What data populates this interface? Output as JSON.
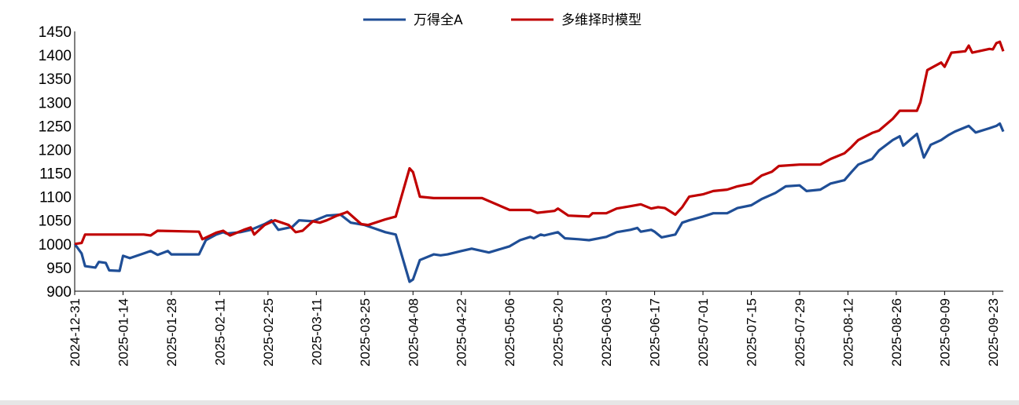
{
  "chart_data": {
    "type": "line",
    "title": "",
    "xlabel": "",
    "ylabel": "",
    "ylim": [
      900,
      1450
    ],
    "yticks": [
      900,
      950,
      1000,
      1050,
      1100,
      1150,
      1200,
      1250,
      1300,
      1350,
      1400,
      1450
    ],
    "xlim": [
      "2024-12-31",
      "2025-09-26"
    ],
    "xticks": [
      "2024-12-31",
      "2025-01-14",
      "2025-01-28",
      "2025-02-11",
      "2025-02-25",
      "2025-03-11",
      "2025-03-25",
      "2025-04-08",
      "2025-04-22",
      "2025-05-06",
      "2025-05-20",
      "2025-06-03",
      "2025-06-17",
      "2025-07-01",
      "2025-07-15",
      "2025-07-29",
      "2025-08-12",
      "2025-08-26",
      "2025-09-09",
      "2025-09-23"
    ],
    "grid": false,
    "legend": "top-center",
    "series": [
      {
        "name": "万得全A",
        "color": "#1F4E96",
        "points": [
          [
            "2024-12-31",
            1000
          ],
          [
            "2025-01-02",
            980
          ],
          [
            "2025-01-03",
            953
          ],
          [
            "2025-01-06",
            950
          ],
          [
            "2025-01-07",
            962
          ],
          [
            "2025-01-09",
            960
          ],
          [
            "2025-01-10",
            944
          ],
          [
            "2025-01-13",
            943
          ],
          [
            "2025-01-14",
            975
          ],
          [
            "2025-01-16",
            970
          ],
          [
            "2025-01-20",
            980
          ],
          [
            "2025-01-22",
            985
          ],
          [
            "2025-01-24",
            977
          ],
          [
            "2025-01-27",
            985
          ],
          [
            "2025-01-28",
            978
          ],
          [
            "2025-02-05",
            978
          ],
          [
            "2025-02-07",
            1008
          ],
          [
            "2025-02-10",
            1020
          ],
          [
            "2025-02-12",
            1025
          ],
          [
            "2025-02-13",
            1022
          ],
          [
            "2025-02-17",
            1025
          ],
          [
            "2025-02-20",
            1030
          ],
          [
            "2025-02-24",
            1042
          ],
          [
            "2025-02-26",
            1050
          ],
          [
            "2025-02-28",
            1030
          ],
          [
            "2025-03-04",
            1036
          ],
          [
            "2025-03-06",
            1050
          ],
          [
            "2025-03-10",
            1048
          ],
          [
            "2025-03-14",
            1060
          ],
          [
            "2025-03-18",
            1062
          ],
          [
            "2025-03-21",
            1045
          ],
          [
            "2025-03-25",
            1040
          ],
          [
            "2025-03-27",
            1035
          ],
          [
            "2025-03-31",
            1025
          ],
          [
            "2025-04-03",
            1020
          ],
          [
            "2025-04-07",
            920
          ],
          [
            "2025-04-08",
            925
          ],
          [
            "2025-04-10",
            966
          ],
          [
            "2025-04-14",
            978
          ],
          [
            "2025-04-16",
            976
          ],
          [
            "2025-04-18",
            978
          ],
          [
            "2025-04-22",
            985
          ],
          [
            "2025-04-25",
            990
          ],
          [
            "2025-04-30",
            982
          ],
          [
            "2025-05-06",
            995
          ],
          [
            "2025-05-09",
            1008
          ],
          [
            "2025-05-12",
            1015
          ],
          [
            "2025-05-13",
            1012
          ],
          [
            "2025-05-15",
            1020
          ],
          [
            "2025-05-16",
            1018
          ],
          [
            "2025-05-20",
            1025
          ],
          [
            "2025-05-22",
            1012
          ],
          [
            "2025-05-26",
            1010
          ],
          [
            "2025-05-29",
            1008
          ],
          [
            "2025-06-03",
            1015
          ],
          [
            "2025-06-06",
            1025
          ],
          [
            "2025-06-10",
            1030
          ],
          [
            "2025-06-12",
            1034
          ],
          [
            "2025-06-13",
            1026
          ],
          [
            "2025-06-16",
            1030
          ],
          [
            "2025-06-17",
            1026
          ],
          [
            "2025-06-19",
            1014
          ],
          [
            "2025-06-23",
            1020
          ],
          [
            "2025-06-25",
            1045
          ],
          [
            "2025-06-27",
            1050
          ],
          [
            "2025-07-01",
            1058
          ],
          [
            "2025-07-04",
            1065
          ],
          [
            "2025-07-08",
            1065
          ],
          [
            "2025-07-11",
            1076
          ],
          [
            "2025-07-15",
            1082
          ],
          [
            "2025-07-18",
            1095
          ],
          [
            "2025-07-22",
            1108
          ],
          [
            "2025-07-25",
            1122
          ],
          [
            "2025-07-29",
            1124
          ],
          [
            "2025-07-31",
            1112
          ],
          [
            "2025-08-04",
            1115
          ],
          [
            "2025-08-07",
            1128
          ],
          [
            "2025-08-11",
            1135
          ],
          [
            "2025-08-13",
            1152
          ],
          [
            "2025-08-15",
            1168
          ],
          [
            "2025-08-19",
            1180
          ],
          [
            "2025-08-21",
            1198
          ],
          [
            "2025-08-25",
            1220
          ],
          [
            "2025-08-27",
            1228
          ],
          [
            "2025-08-28",
            1208
          ],
          [
            "2025-09-01",
            1233
          ],
          [
            "2025-09-03",
            1183
          ],
          [
            "2025-09-05",
            1210
          ],
          [
            "2025-09-08",
            1220
          ],
          [
            "2025-09-10",
            1230
          ],
          [
            "2025-09-12",
            1238
          ],
          [
            "2025-09-16",
            1250
          ],
          [
            "2025-09-18",
            1236
          ],
          [
            "2025-09-22",
            1245
          ],
          [
            "2025-09-24",
            1250
          ],
          [
            "2025-09-25",
            1255
          ],
          [
            "2025-09-26",
            1238
          ]
        ]
      },
      {
        "name": "多维择时模型",
        "color": "#C00000",
        "points": [
          [
            "2024-12-31",
            1000
          ],
          [
            "2025-01-02",
            1002
          ],
          [
            "2025-01-03",
            1020
          ],
          [
            "2025-01-06",
            1020
          ],
          [
            "2025-01-20",
            1020
          ],
          [
            "2025-01-22",
            1018
          ],
          [
            "2025-01-24",
            1028
          ],
          [
            "2025-02-05",
            1026
          ],
          [
            "2025-02-06",
            1010
          ],
          [
            "2025-02-10",
            1024
          ],
          [
            "2025-02-12",
            1028
          ],
          [
            "2025-02-14",
            1018
          ],
          [
            "2025-02-18",
            1030
          ],
          [
            "2025-02-20",
            1035
          ],
          [
            "2025-02-21",
            1020
          ],
          [
            "2025-02-24",
            1040
          ],
          [
            "2025-02-27",
            1050
          ],
          [
            "2025-03-03",
            1040
          ],
          [
            "2025-03-05",
            1025
          ],
          [
            "2025-03-07",
            1028
          ],
          [
            "2025-03-10",
            1048
          ],
          [
            "2025-03-12",
            1045
          ],
          [
            "2025-03-14",
            1050
          ],
          [
            "2025-03-17",
            1060
          ],
          [
            "2025-03-19",
            1065
          ],
          [
            "2025-03-20",
            1068
          ],
          [
            "2025-03-24",
            1042
          ],
          [
            "2025-03-26",
            1040
          ],
          [
            "2025-03-31",
            1052
          ],
          [
            "2025-04-03",
            1058
          ],
          [
            "2025-04-07",
            1160
          ],
          [
            "2025-04-08",
            1152
          ],
          [
            "2025-04-10",
            1100
          ],
          [
            "2025-04-14",
            1097
          ],
          [
            "2025-04-28",
            1097
          ],
          [
            "2025-05-06",
            1072
          ],
          [
            "2025-05-12",
            1072
          ],
          [
            "2025-05-14",
            1066
          ],
          [
            "2025-05-19",
            1070
          ],
          [
            "2025-05-20",
            1075
          ],
          [
            "2025-05-23",
            1060
          ],
          [
            "2025-05-29",
            1058
          ],
          [
            "2025-05-30",
            1065
          ],
          [
            "2025-06-03",
            1065
          ],
          [
            "2025-06-06",
            1075
          ],
          [
            "2025-06-10",
            1080
          ],
          [
            "2025-06-13",
            1084
          ],
          [
            "2025-06-16",
            1075
          ],
          [
            "2025-06-18",
            1078
          ],
          [
            "2025-06-20",
            1076
          ],
          [
            "2025-06-23",
            1062
          ],
          [
            "2025-06-25",
            1078
          ],
          [
            "2025-06-27",
            1100
          ],
          [
            "2025-07-01",
            1105
          ],
          [
            "2025-07-04",
            1112
          ],
          [
            "2025-07-08",
            1115
          ],
          [
            "2025-07-11",
            1122
          ],
          [
            "2025-07-15",
            1128
          ],
          [
            "2025-07-18",
            1145
          ],
          [
            "2025-07-21",
            1153
          ],
          [
            "2025-07-23",
            1165
          ],
          [
            "2025-07-29",
            1168
          ],
          [
            "2025-08-04",
            1168
          ],
          [
            "2025-08-07",
            1180
          ],
          [
            "2025-08-11",
            1192
          ],
          [
            "2025-08-13",
            1205
          ],
          [
            "2025-08-15",
            1220
          ],
          [
            "2025-08-19",
            1235
          ],
          [
            "2025-08-21",
            1240
          ],
          [
            "2025-08-25",
            1265
          ],
          [
            "2025-08-27",
            1282
          ],
          [
            "2025-09-01",
            1282
          ],
          [
            "2025-09-02",
            1300
          ],
          [
            "2025-09-04",
            1368
          ],
          [
            "2025-09-08",
            1384
          ],
          [
            "2025-09-09",
            1375
          ],
          [
            "2025-09-11",
            1405
          ],
          [
            "2025-09-15",
            1408
          ],
          [
            "2025-09-16",
            1420
          ],
          [
            "2025-09-17",
            1405
          ],
          [
            "2025-09-22",
            1413
          ],
          [
            "2025-09-23",
            1412
          ],
          [
            "2025-09-24",
            1425
          ],
          [
            "2025-09-25",
            1428
          ],
          [
            "2025-09-26",
            1408
          ]
        ]
      }
    ]
  }
}
